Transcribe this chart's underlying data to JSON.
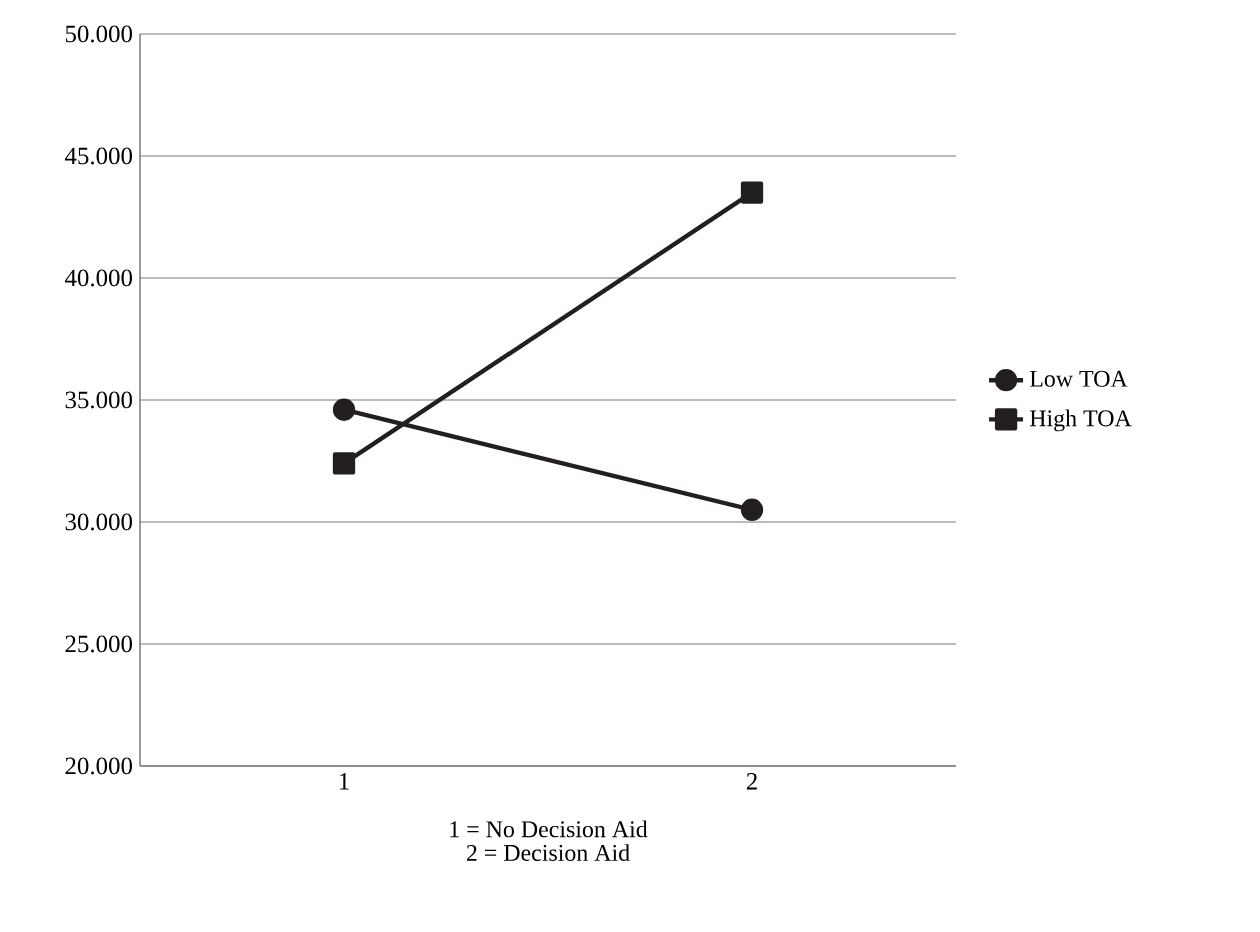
{
  "chart_data": {
    "type": "line",
    "xlabel": "1 = No Decision Aid",
    "annotations": [
      "2 = Decision Aid"
    ],
    "categories": [
      "1",
      "2"
    ],
    "series": [
      {
        "name": "Low TOA",
        "color": "#231f20",
        "values": [
          34.6,
          30.5
        ],
        "marker": "circle"
      },
      {
        "name": "High TOA",
        "color": "#231f20",
        "values": [
          32.4,
          43.5
        ],
        "marker": "square"
      }
    ],
    "ylim": [
      20,
      50
    ],
    "yticks": [
      {
        "value": 20,
        "label": "20.000"
      },
      {
        "value": 25,
        "label": "25.000"
      },
      {
        "value": 30,
        "label": "30.000"
      },
      {
        "value": 35,
        "label": "35.000"
      },
      {
        "value": 40,
        "label": "40.000"
      },
      {
        "value": 45,
        "label": "45.000"
      },
      {
        "value": 50,
        "label": "50.000"
      }
    ],
    "grid": "y",
    "legend": "right",
    "line_style": "solid"
  }
}
